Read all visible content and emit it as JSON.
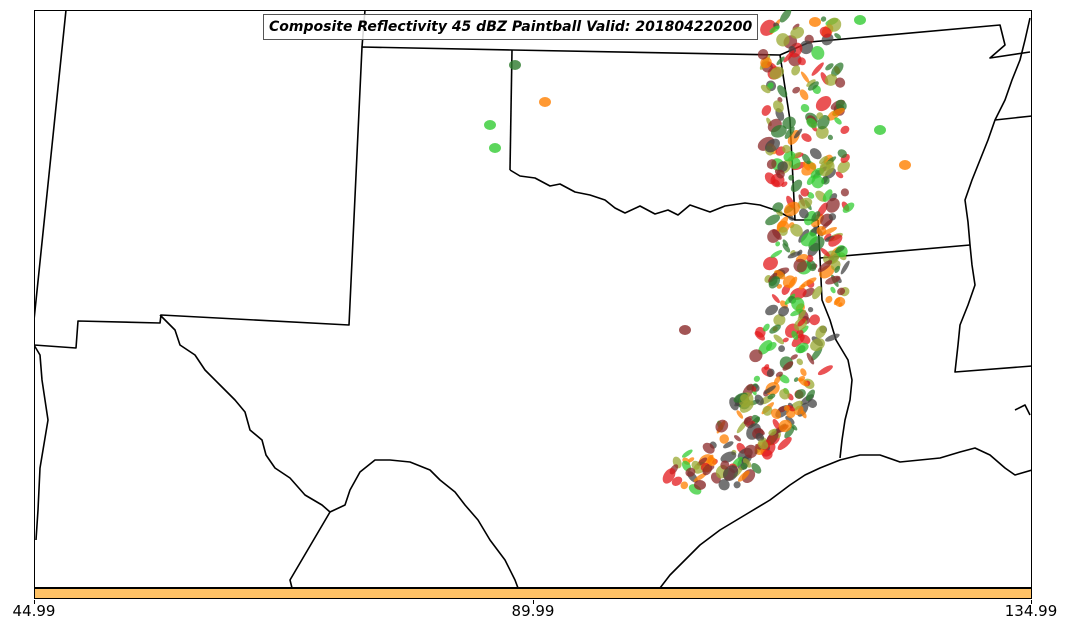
{
  "title": "Composite Reflectivity 45 dBZ Paintball Valid: 201804220200",
  "colorbar": {
    "color": "#ffc266",
    "ticks": [
      "44.99",
      "89.99",
      "134.99"
    ]
  },
  "ensemble_colors": [
    "#e31a1c",
    "#ff7f00",
    "#33cc33",
    "#8b2a2a",
    "#2d7a2d",
    "#9aa832",
    "#444444"
  ],
  "map": {
    "land_color": "#ffffff",
    "border_color": "#000000"
  }
}
